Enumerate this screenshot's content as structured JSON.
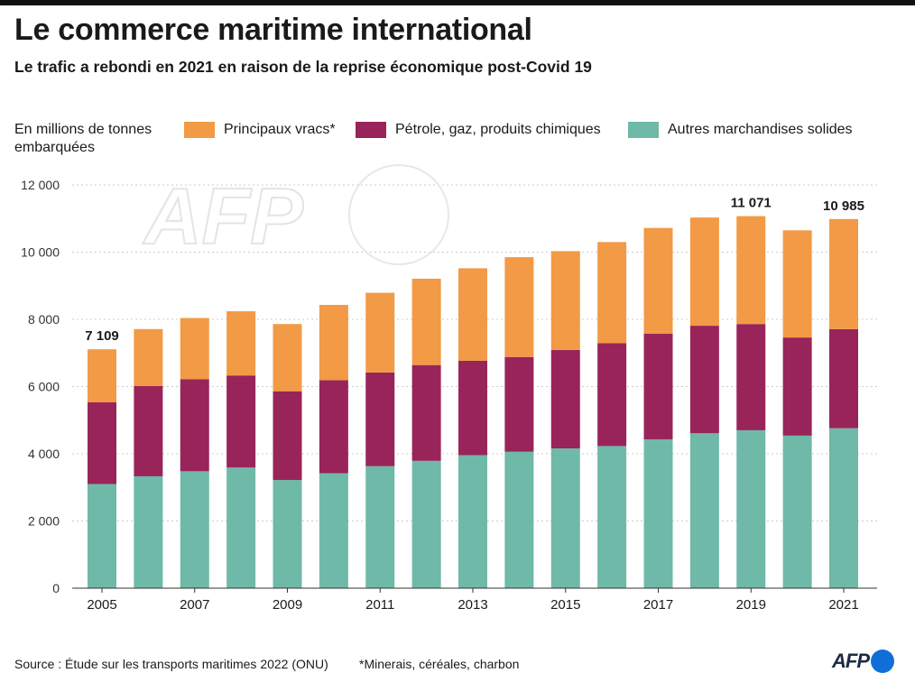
{
  "header": {
    "title": "Le commerce maritime international",
    "subtitle": "Le trafic a rebondi en 2021 en raison de la reprise économique post-Covid 19"
  },
  "footer": {
    "source": "Source : Étude sur les transports maritimes 2022 (ONU)",
    "note": "*Minerais, céréales, charbon",
    "logo": "AFP"
  },
  "colors": {
    "vracs": "#f29a45",
    "petrole": "#99245a",
    "autres": "#6fb9a8",
    "grid": "#cccccc",
    "axis": "#333333"
  },
  "chart_data": {
    "type": "bar",
    "stacked": true,
    "title": "Le commerce maritime international",
    "ylabel": "En millions de tonnes embarquées",
    "ylim": [
      0,
      12000
    ],
    "yticks": [
      0,
      2000,
      4000,
      6000,
      8000,
      10000,
      12000
    ],
    "ytick_labels": [
      "0",
      "2 000",
      "4 000",
      "6 000",
      "8 000",
      "10 000",
      "12 000"
    ],
    "categories": [
      "2005",
      "2006",
      "2007",
      "2008",
      "2009",
      "2010",
      "2011",
      "2012",
      "2013",
      "2014",
      "2015",
      "2016",
      "2017",
      "2018",
      "2019",
      "2020",
      "2021"
    ],
    "xtick_labels": [
      "2005",
      "2007",
      "2009",
      "2011",
      "2013",
      "2015",
      "2017",
      "2019",
      "2021"
    ],
    "series": [
      {
        "name": "Autres marchandises solides",
        "key": "autres",
        "values": [
          3100,
          3330,
          3480,
          3590,
          3220,
          3420,
          3630,
          3790,
          3960,
          4060,
          4160,
          4230,
          4430,
          4610,
          4700,
          4540,
          4760
        ]
      },
      {
        "name": "Pétrole, gaz, produits chimiques",
        "key": "petrole",
        "values": [
          2430,
          2690,
          2740,
          2740,
          2640,
          2770,
          2790,
          2850,
          2810,
          2820,
          2930,
          3060,
          3140,
          3200,
          3160,
          2920,
          2950
        ]
      },
      {
        "name": "Principaux vracs*",
        "key": "vracs",
        "values": [
          1579,
          1690,
          1820,
          1910,
          2000,
          2240,
          2370,
          2570,
          2750,
          2970,
          2940,
          3010,
          3150,
          3220,
          3211,
          3190,
          3275
        ]
      }
    ],
    "legend_order": [
      "vracs",
      "petrole",
      "autres"
    ],
    "annotations": [
      {
        "category": "2005",
        "label": "7 109"
      },
      {
        "category": "2019",
        "label": "11 071"
      },
      {
        "category": "2021",
        "label": "10 985"
      }
    ]
  }
}
